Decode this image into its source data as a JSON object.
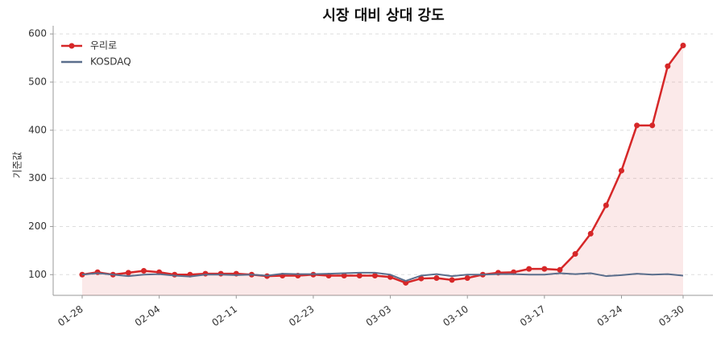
{
  "chart_data": {
    "type": "line",
    "title": "시장 대비 상대 강도",
    "y_label": "기준값",
    "categories": [
      "01-28",
      null,
      null,
      null,
      null,
      "02-04",
      null,
      null,
      null,
      null,
      "02-11",
      null,
      null,
      null,
      null,
      "02-23",
      null,
      null,
      null,
      null,
      "03-03",
      null,
      null,
      null,
      null,
      "03-10",
      null,
      null,
      null,
      null,
      "03-17",
      null,
      null,
      null,
      null,
      "03-24",
      null,
      null,
      null,
      "03-30"
    ],
    "series": [
      {
        "name": "우리로",
        "color": "#d62728",
        "markers": true,
        "fill": true,
        "values": [
          100,
          105,
          100,
          104,
          108,
          105,
          100,
          100,
          102,
          102,
          102,
          100,
          97,
          98,
          98,
          100,
          98,
          98,
          98,
          98,
          95,
          83,
          92,
          93,
          89,
          93,
          100,
          104,
          105,
          112,
          112,
          110,
          143,
          185,
          244,
          316,
          410,
          410,
          533,
          576
        ]
      },
      {
        "name": "KOSDAQ",
        "color": "#5a6e8c",
        "markers": false,
        "fill": false,
        "values": [
          100,
          103,
          100,
          97,
          100,
          101,
          98,
          96,
          100,
          100,
          99,
          100,
          98,
          102,
          101,
          101,
          102,
          103,
          104,
          104,
          100,
          87,
          98,
          101,
          97,
          100,
          100,
          101,
          101,
          100,
          100,
          103,
          101,
          103,
          97,
          99,
          102,
          100,
          101,
          98
        ]
      }
    ],
    "ylim": [
      57,
      617
    ],
    "yticks": [
      100,
      200,
      300,
      400,
      500,
      600
    ],
    "grid": true,
    "legend": "upper-left"
  }
}
